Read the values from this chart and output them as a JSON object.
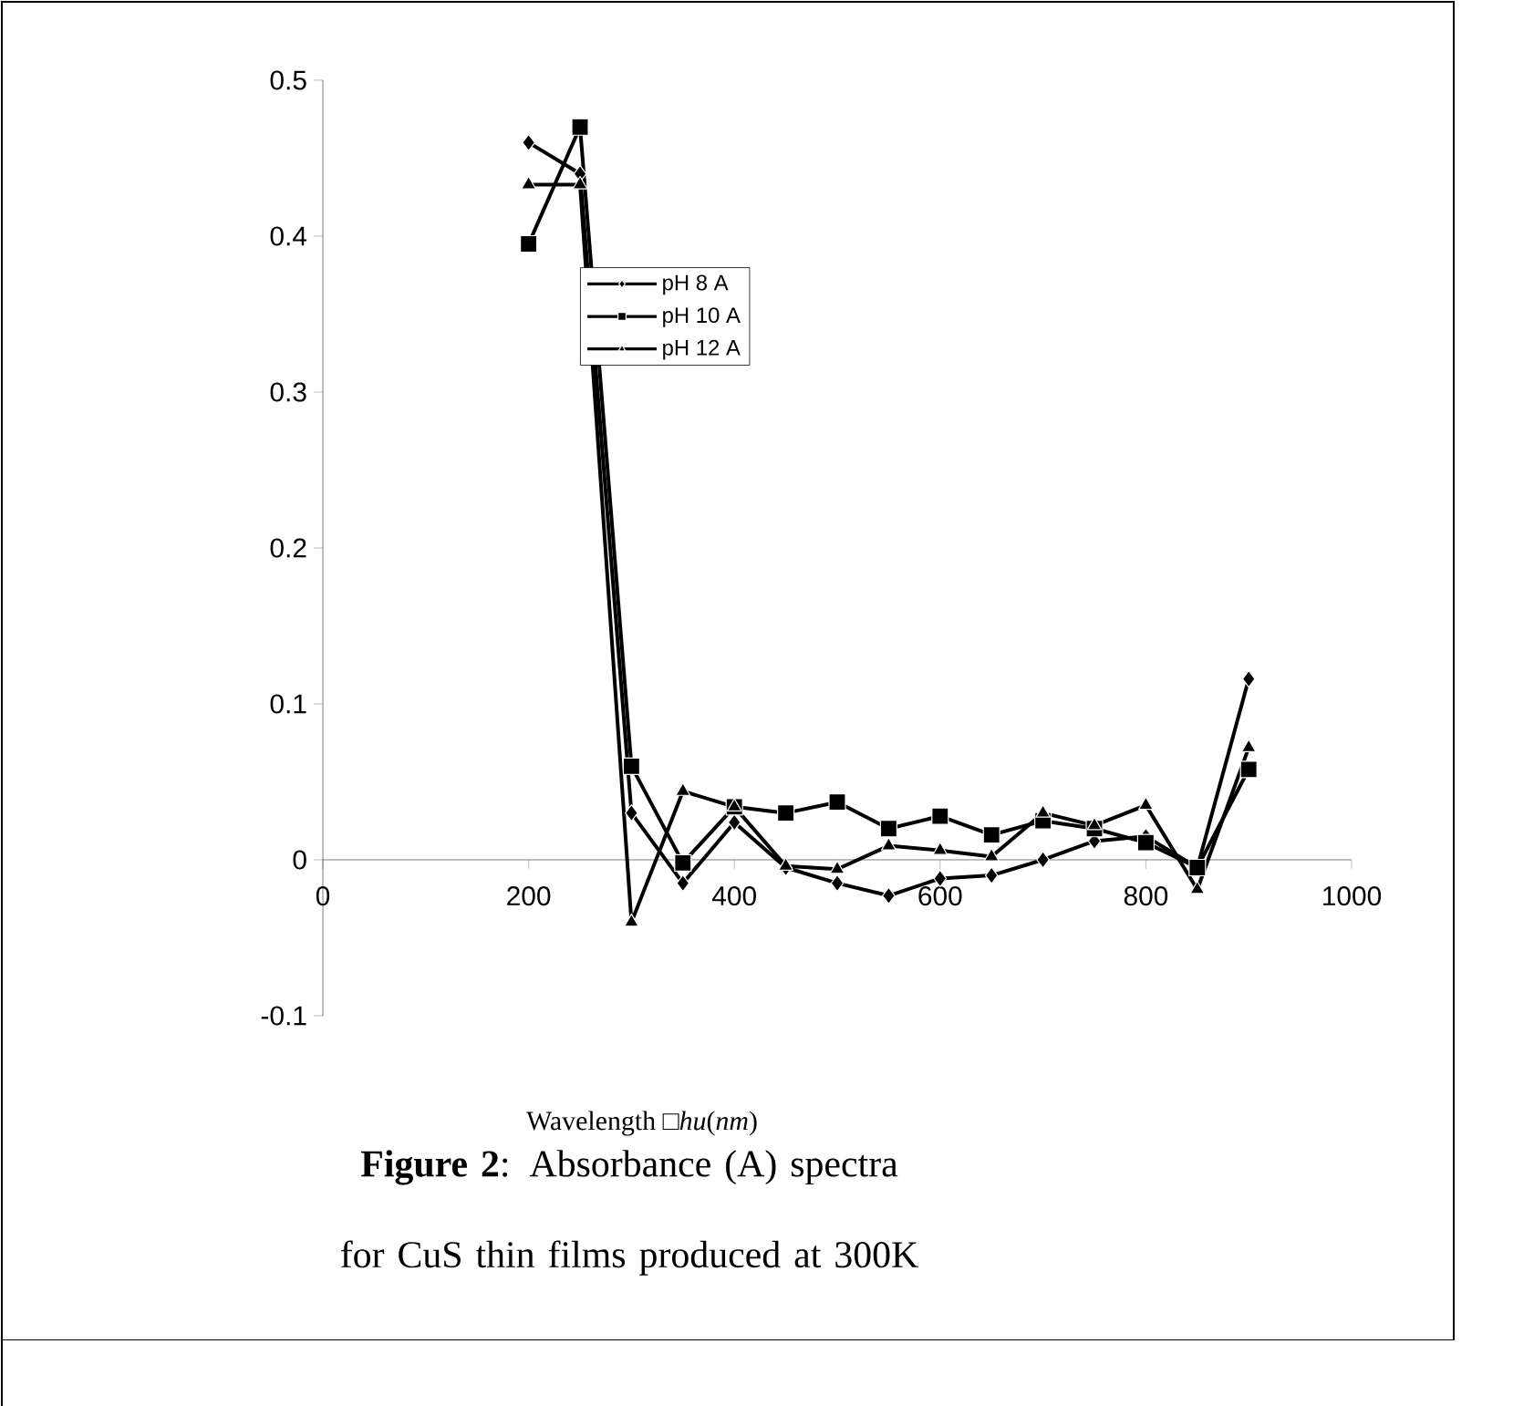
{
  "chart_data": {
    "type": "line",
    "title": "**Figure 2**: Absorbance (A) spectra for CuS thin films produced at 300K",
    "xlabel": "Wavelength □*hu*(*nm*)",
    "x": [
      200,
      250,
      300,
      350,
      400,
      450,
      500,
      550,
      600,
      650,
      700,
      750,
      800,
      850,
      900
    ],
    "series": [
      {
        "name": "pH 8 A",
        "color": "#000000",
        "marker": "diamond",
        "values": [
          0.46,
          0.44,
          0.03,
          -0.015,
          0.024,
          -0.005,
          -0.015,
          -0.023,
          -0.012,
          -0.01,
          0.0,
          0.012,
          0.015,
          -0.005,
          0.116
        ]
      },
      {
        "name": "pH 10 A",
        "color": "#000000",
        "marker": "square",
        "values": [
          0.395,
          0.47,
          0.06,
          -0.002,
          0.034,
          0.03,
          0.037,
          0.02,
          0.028,
          0.016,
          0.025,
          0.02,
          0.011,
          -0.005,
          0.058
        ]
      },
      {
        "name": "pH 12 A",
        "color": "#000000",
        "marker": "triangle",
        "values": [
          0.433,
          0.433,
          -0.04,
          0.044,
          0.034,
          -0.004,
          -0.006,
          0.009,
          0.006,
          0.002,
          0.03,
          0.022,
          0.035,
          -0.019,
          0.072
        ]
      }
    ],
    "xlim": [
      0,
      1000
    ],
    "ylim": [
      -0.1,
      0.5
    ],
    "xticks": [
      0,
      200,
      400,
      600,
      800,
      1000
    ],
    "yticks": [
      -0.1,
      0,
      0.1,
      0.2,
      0.3,
      0.4,
      0.5
    ],
    "legend": "top",
    "grid": false,
    "line_style": "solid"
  }
}
